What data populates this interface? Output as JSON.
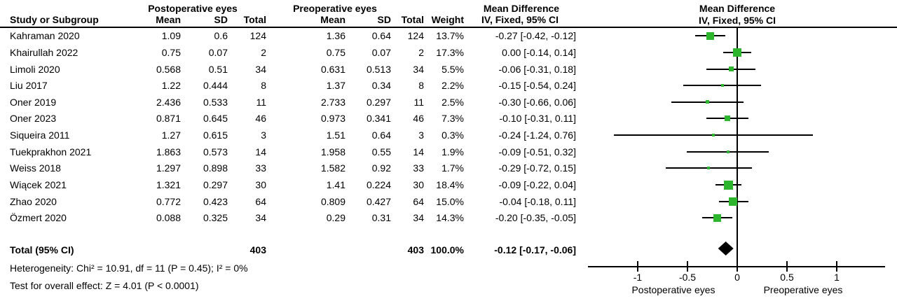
{
  "table": {
    "group_headers": {
      "post": "Postoperative eyes",
      "pre": "Preoperative eyes",
      "md": "Mean Difference",
      "md_sub": "IV, Fixed, 95% CI"
    },
    "plot_headers": {
      "md": "Mean Difference",
      "md_sub": "IV, Fixed, 95% CI"
    },
    "columns": {
      "study": "Study or Subgroup",
      "mean": "Mean",
      "sd": "SD",
      "total": "Total",
      "weight": "Weight",
      "ci": "IV, Fixed, 95% CI"
    },
    "total_row": {
      "label": "Total (95% CI)",
      "post_total": "403",
      "pre_total": "403",
      "weight": "100.0%",
      "ci": "-0.12 [-0.17, -0.06]"
    },
    "footnotes": {
      "heterogeneity": "Heterogeneity: Chi² = 10.91, df = 11 (P = 0.45); I² = 0%",
      "overall_effect": "Test for overall effect: Z = 4.01 (P < 0.0001)"
    }
  },
  "chart_data": {
    "type": "forest",
    "effect_measure": "Mean Difference, IV, Fixed, 95% CI",
    "marker_color": "#2DB52D",
    "diamond_color": "#000000",
    "x_axis": {
      "range": [
        -1.5,
        1.5
      ],
      "ticks": [
        -1,
        -0.5,
        0,
        0.5,
        1
      ],
      "tick_labels": [
        "-1",
        "-0.5",
        "0",
        "0.5",
        "1"
      ],
      "left_label": "Postoperative eyes",
      "right_label": "Preoperative eyes"
    },
    "studies": [
      {
        "name": "Kahraman 2020",
        "post_mean": "1.09",
        "post_sd": "0.6",
        "post_total": "124",
        "pre_mean": "1.36",
        "pre_sd": "0.64",
        "pre_total": "124",
        "weight": "13.7%",
        "ci_text": "-0.27 [-0.42, -0.12]",
        "md": -0.27,
        "lo": -0.42,
        "hi": -0.12,
        "w": 13.7
      },
      {
        "name": "Khairullah 2022",
        "post_mean": "0.75",
        "post_sd": "0.07",
        "post_total": "2",
        "pre_mean": "0.75",
        "pre_sd": "0.07",
        "pre_total": "2",
        "weight": "17.3%",
        "ci_text": "0.00 [-0.14, 0.14]",
        "md": 0.0,
        "lo": -0.14,
        "hi": 0.14,
        "w": 17.3
      },
      {
        "name": "Limoli 2020",
        "post_mean": "0.568",
        "post_sd": "0.51",
        "post_total": "34",
        "pre_mean": "0.631",
        "pre_sd": "0.513",
        "pre_total": "34",
        "weight": "5.5%",
        "ci_text": "-0.06 [-0.31, 0.18]",
        "md": -0.06,
        "lo": -0.31,
        "hi": 0.18,
        "w": 5.5
      },
      {
        "name": "Liu 2017",
        "post_mean": "1.22",
        "post_sd": "0.444",
        "post_total": "8",
        "pre_mean": "1.37",
        "pre_sd": "0.34",
        "pre_total": "8",
        "weight": "2.2%",
        "ci_text": "-0.15 [-0.54, 0.24]",
        "md": -0.15,
        "lo": -0.54,
        "hi": 0.24,
        "w": 2.2
      },
      {
        "name": "Oner 2019",
        "post_mean": "2.436",
        "post_sd": "0.533",
        "post_total": "11",
        "pre_mean": "2.733",
        "pre_sd": "0.297",
        "pre_total": "11",
        "weight": "2.5%",
        "ci_text": "-0.30 [-0.66, 0.06]",
        "md": -0.3,
        "lo": -0.66,
        "hi": 0.06,
        "w": 2.5
      },
      {
        "name": "Oner 2023",
        "post_mean": "0.871",
        "post_sd": "0.645",
        "post_total": "46",
        "pre_mean": "0.973",
        "pre_sd": "0.341",
        "pre_total": "46",
        "weight": "7.3%",
        "ci_text": "-0.10 [-0.31, 0.11]",
        "md": -0.1,
        "lo": -0.31,
        "hi": 0.11,
        "w": 7.3
      },
      {
        "name": "Siqueira 2011",
        "post_mean": "1.27",
        "post_sd": "0.615",
        "post_total": "3",
        "pre_mean": "1.51",
        "pre_sd": "0.64",
        "pre_total": "3",
        "weight": "0.3%",
        "ci_text": "-0.24 [-1.24, 0.76]",
        "md": -0.24,
        "lo": -1.24,
        "hi": 0.76,
        "w": 0.3
      },
      {
        "name": "Tuekprakhon 2021",
        "post_mean": "1.863",
        "post_sd": "0.573",
        "post_total": "14",
        "pre_mean": "1.958",
        "pre_sd": "0.55",
        "pre_total": "14",
        "weight": "1.9%",
        "ci_text": "-0.09 [-0.51, 0.32]",
        "md": -0.09,
        "lo": -0.51,
        "hi": 0.32,
        "w": 1.9
      },
      {
        "name": "Weiss 2018",
        "post_mean": "1.297",
        "post_sd": "0.898",
        "post_total": "33",
        "pre_mean": "1.582",
        "pre_sd": "0.92",
        "pre_total": "33",
        "weight": "1.7%",
        "ci_text": "-0.29 [-0.72, 0.15]",
        "md": -0.29,
        "lo": -0.72,
        "hi": 0.15,
        "w": 1.7
      },
      {
        "name": "Wiącek 2021",
        "post_mean": "1.321",
        "post_sd": "0.297",
        "post_total": "30",
        "pre_mean": "1.41",
        "pre_sd": "0.224",
        "pre_total": "30",
        "weight": "18.4%",
        "ci_text": "-0.09 [-0.22, 0.04]",
        "md": -0.09,
        "lo": -0.22,
        "hi": 0.04,
        "w": 18.4
      },
      {
        "name": "Zhao 2020",
        "post_mean": "0.772",
        "post_sd": "0.423",
        "post_total": "64",
        "pre_mean": "0.809",
        "pre_sd": "0.427",
        "pre_total": "64",
        "weight": "15.0%",
        "ci_text": "-0.04 [-0.18, 0.11]",
        "md": -0.04,
        "lo": -0.18,
        "hi": 0.11,
        "w": 15.0
      },
      {
        "name": "Özmert 2020",
        "post_mean": "0.088",
        "post_sd": "0.325",
        "post_total": "34",
        "pre_mean": "0.29",
        "pre_sd": "0.31",
        "pre_total": "34",
        "weight": "14.3%",
        "ci_text": "-0.20 [-0.35, -0.05]",
        "md": -0.2,
        "lo": -0.35,
        "hi": -0.05,
        "w": 14.3
      }
    ],
    "total": {
      "label": "Total (95% CI)",
      "post_total": 403,
      "pre_total": 403,
      "weight_pct": 100.0,
      "md": -0.12,
      "lo": -0.17,
      "hi": -0.06,
      "ci_text": "-0.12 [-0.17, -0.06]"
    },
    "heterogeneity": "Chi² = 10.91, df = 11 (P = 0.45); I² = 0%",
    "overall_effect_test": "Z = 4.01 (P < 0.0001)"
  }
}
